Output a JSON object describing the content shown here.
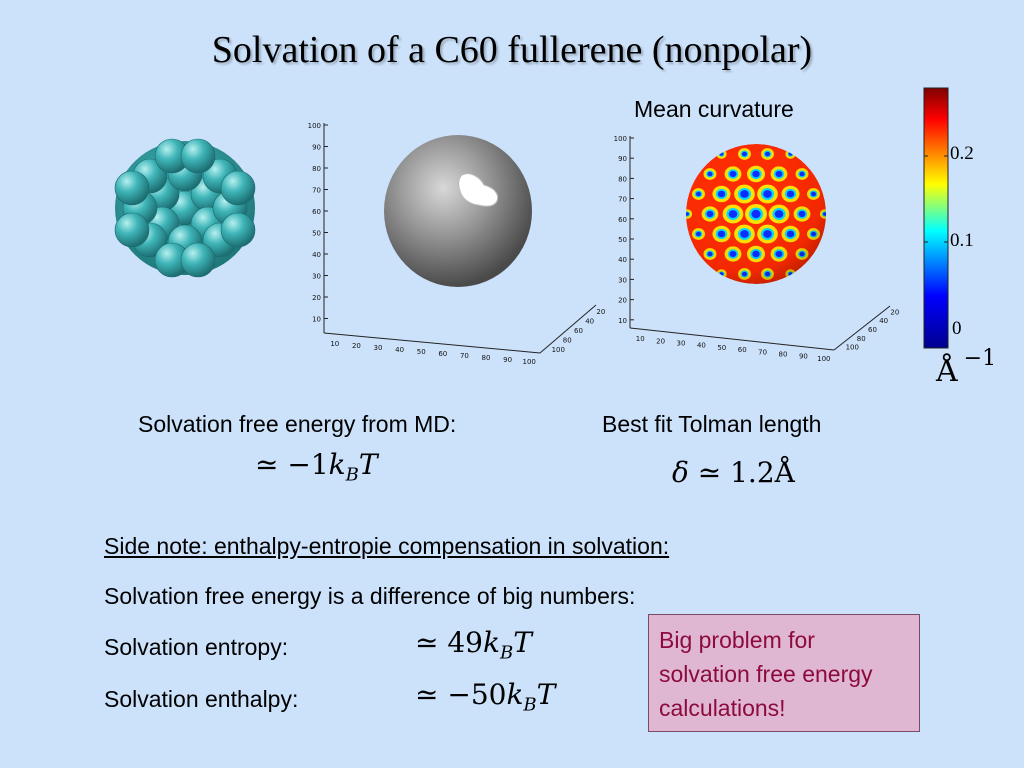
{
  "title": "Solvation of a C60 fullerene (nonpolar)",
  "figures": {
    "plot1": {
      "z_ticks": [
        "100",
        "90",
        "80",
        "70",
        "60",
        "50",
        "40",
        "30",
        "20",
        "10"
      ],
      "x_ticks": [
        "10",
        "20",
        "30",
        "40",
        "50",
        "60",
        "70",
        "80",
        "90",
        "100"
      ],
      "y_ticks": [
        "20",
        "40",
        "60",
        "80",
        "100"
      ]
    },
    "plot2": {
      "title": "Mean curvature",
      "z_ticks": [
        "100",
        "90",
        "80",
        "70",
        "60",
        "50",
        "40",
        "30",
        "20",
        "10"
      ],
      "x_ticks": [
        "10",
        "20",
        "30",
        "40",
        "50",
        "60",
        "70",
        "80",
        "90",
        "100"
      ],
      "y_ticks": [
        "20",
        "40",
        "60",
        "80",
        "100"
      ]
    },
    "colorbar": {
      "ticks": [
        "0.2",
        "0.1",
        "0"
      ],
      "unit_base": "Å",
      "unit_exp": "−1",
      "colors": [
        "#800000",
        "#ff0000",
        "#ffff00",
        "#00ffff",
        "#0000ff",
        "#00008f"
      ]
    }
  },
  "md": {
    "label": "Solvation free energy from MD:",
    "value_prefix": "≃ −1",
    "value_var": "k",
    "value_sub": "B",
    "value_T": "T"
  },
  "tolman": {
    "label": "Best fit Tolman length",
    "delta": "δ",
    "value": " ≃ 1.2Å"
  },
  "side_note": {
    "heading": "Side note: enthalpy-entropie compensation in solvation:",
    "line1": "Solvation free energy is a difference of big numbers:",
    "entropy_label": "Solvation entropy:",
    "entropy_prefix": "≃ 49",
    "enthalpy_label": "Solvation enthalpy:",
    "enthalpy_prefix": "≃ −50",
    "kB_var": "k",
    "kB_sub": "B",
    "T_var": "T"
  },
  "callout": {
    "line1": "Big problem for",
    "line2": "solvation free energy",
    "line3": "calculations!"
  }
}
